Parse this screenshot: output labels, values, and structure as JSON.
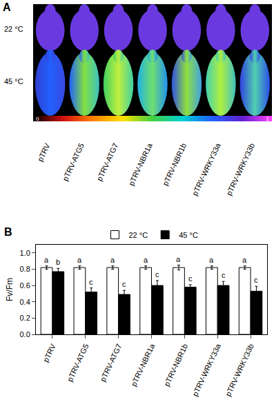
{
  "chart_data": {
    "type": "bar",
    "panel_label": "B",
    "categories": [
      "pTRV",
      "pTRV-ATG5",
      "pTRV-ATG7",
      "pTRV-NBR1a",
      "pTRV-NBR1b",
      "pTRV-WRKY33a",
      "pTRV-WRKY33b"
    ],
    "y_label": "Fv/Fm",
    "series": [
      {
        "name": "22 °C",
        "color": "#ffffff",
        "values": [
          0.82,
          0.82,
          0.82,
          0.82,
          0.82,
          0.82,
          0.82
        ],
        "errors": [
          0.02,
          0.02,
          0.02,
          0.02,
          0.03,
          0.02,
          0.02
        ],
        "letters": [
          "a",
          "a",
          "a",
          "a",
          "a",
          "a",
          "a"
        ]
      },
      {
        "name": "45 °C",
        "color": "#000000",
        "values": [
          0.77,
          0.52,
          0.49,
          0.6,
          0.58,
          0.6,
          0.53
        ],
        "errors": [
          0.04,
          0.05,
          0.05,
          0.06,
          0.03,
          0.05,
          0.06
        ],
        "letters": [
          "b",
          "c",
          "c",
          "c",
          "c",
          "c",
          "c"
        ]
      }
    ],
    "ylim": [
      0,
      1.1
    ],
    "yticks": [
      {
        "value": 0,
        "label": "0.0"
      },
      {
        "value": 0.2,
        "label": "0.2"
      },
      {
        "value": 0.4,
        "label": "0.4"
      },
      {
        "value": 0.6,
        "label": "0.6"
      },
      {
        "value": 0.8,
        "label": "0.8"
      },
      {
        "value": 1.0,
        "label": "1.0"
      }
    ],
    "legend": "top",
    "grid": false
  },
  "image_panel": {
    "panel_label": "A",
    "rows": [
      "22 °C",
      "45 °C"
    ],
    "colorbar_labels": [
      "0",
      "1"
    ]
  }
}
